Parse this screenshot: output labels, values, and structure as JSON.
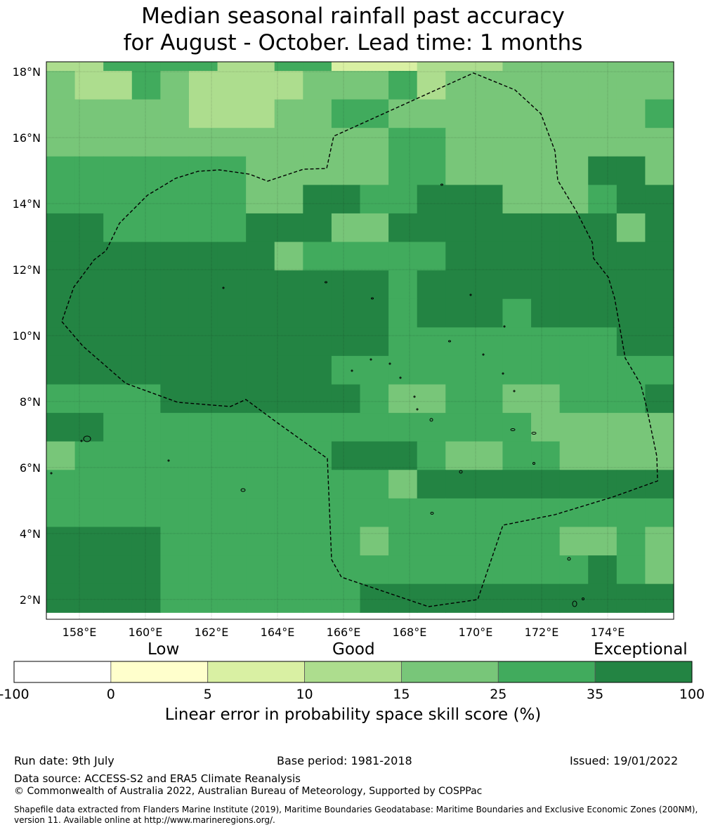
{
  "title": {
    "line1": "Median seasonal rainfall past accuracy",
    "line2": "for August - October. Lead time: 1 months"
  },
  "map": {
    "lon_range": [
      157,
      176
    ],
    "lat_range": [
      1.4,
      18.3
    ],
    "lat_ticks": [
      "2°N",
      "4°N",
      "6°N",
      "8°N",
      "10°N",
      "12°N",
      "14°N",
      "16°N",
      "18°N"
    ],
    "lon_ticks": [
      "158°E",
      "160°E",
      "162°E",
      "164°E",
      "166°E",
      "168°E",
      "170°E",
      "172°E",
      "174°E"
    ],
    "grid_lines": true,
    "eez_boundary": "dashed",
    "cell_size_deg": 0.83,
    "grid_rows_top_to_bottom": [
      "2244442244111222333333",
      "3224322223334233333333",
      "3333322233443333333334",
      "3333333333334433333333",
      "4444444333334433333553",
      "4444444335544555333455",
      "5544444555335555555535",
      "5555555534444455555555",
      "5555555555554555555555",
      "5555555555554555455555",
      "5555555555554444444455",
      "5555555555444444444444",
      "4444555555543344334445",
      "5544444444444444433333",
      "3444444444555433443333",
      "4444444444443555555555",
      "4444444444444444444444",
      "5555444444434444443343",
      "5555444444444444444543",
      "5555444444455555555555"
    ]
  },
  "colorbar": {
    "category_labels": [
      "Low",
      "Good",
      "Exceptional"
    ],
    "ticks": [
      "-100",
      "0",
      "5",
      "10",
      "15",
      "25",
      "35",
      "100"
    ],
    "colors": [
      "#ffffff",
      "#ffffcc",
      "#d9f0a3",
      "#addd8e",
      "#78c679",
      "#41ab5d",
      "#238443"
    ],
    "label": "Linear error in probability space skill score (%)"
  },
  "footer": {
    "run_date": "Run date: 9th July",
    "base_period": "Base period: 1981-2018",
    "issued": "Issued: 19/01/2022",
    "data_source": "Data source: ACCESS-S2 and ERA5 Climate Reanalysis",
    "copyright": "© Commonwealth of Australia 2022, Australian Bureau of Meteorology, Supported by COSPPac",
    "shapefile": "Shapefile data extracted from Flanders Marine Institute (2019), Maritime Boundaries Geodatabase: Maritime Boundaries and Exclusive Economic Zones (200NM), version 11. Available online at http://www.marineregions.org/."
  }
}
